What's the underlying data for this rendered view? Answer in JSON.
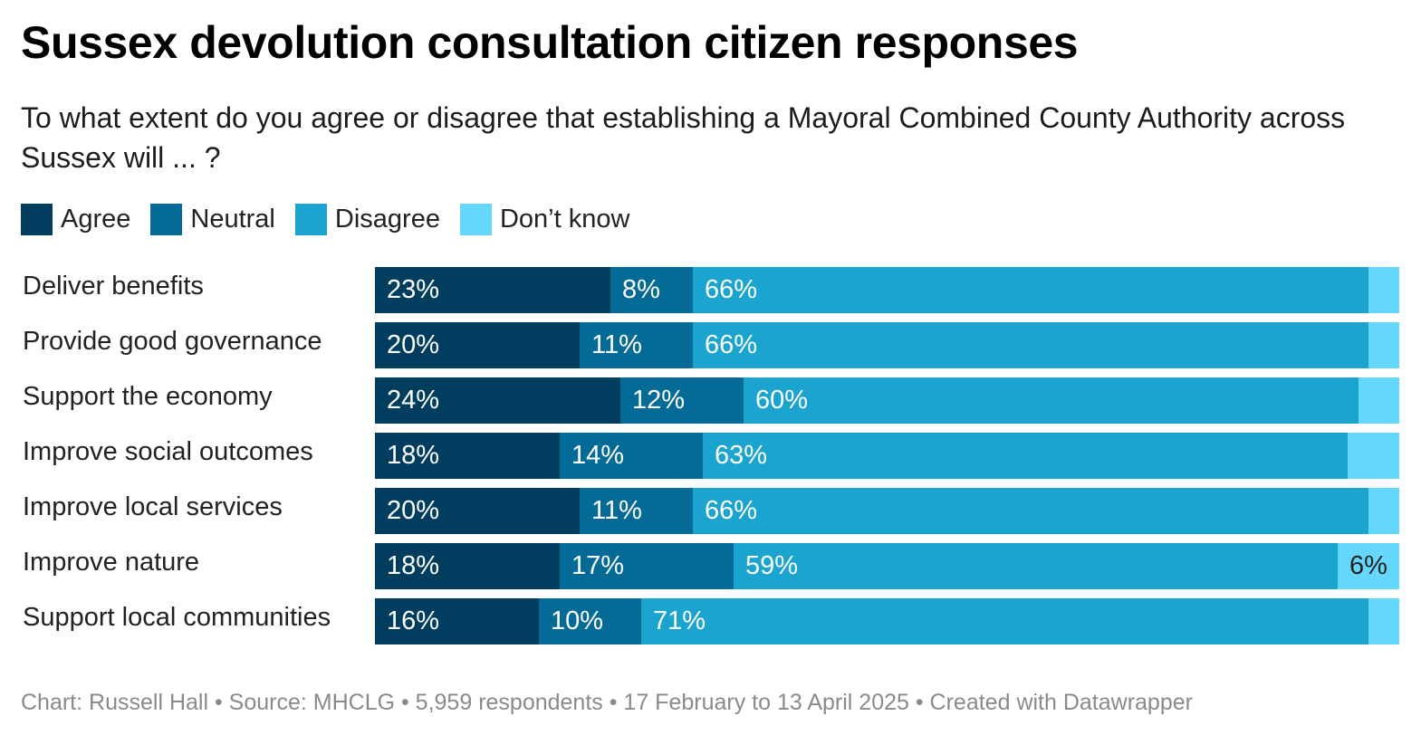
{
  "title": "Sussex devolution consultation citizen responses",
  "subtitle": "To what extent do you agree or disagree that establishing a Mayoral Combined County Authority across Sussex will ... ?",
  "footer": "Chart: Russell Hall • Source: MHCLG • 5,959 respondents • 17 February to 13 April 2025  • Created with Datawrapper",
  "chart_data": {
    "type": "bar",
    "orientation": "horizontal",
    "stacked": true,
    "title": "Sussex devolution consultation citizen responses",
    "subtitle": "To what extent do you agree or disagree that establishing a Mayoral Combined County Authority across Sussex will ... ?",
    "legend_position": "top-left",
    "xlim": [
      0,
      100
    ],
    "categories": [
      "Deliver benefits",
      "Provide good governance",
      "Support the economy",
      "Improve social outcomes",
      "Improve local services",
      "Improve nature",
      "Support local communities"
    ],
    "series": [
      {
        "name": "Agree",
        "color": "#003d5f",
        "text_color": "#ffffff",
        "values": [
          23,
          20,
          24,
          18,
          20,
          18,
          16
        ],
        "labels": [
          "23%",
          "20%",
          "24%",
          "18%",
          "20%",
          "18%",
          "16%"
        ]
      },
      {
        "name": "Neutral",
        "color": "#046b96",
        "text_color": "#ffffff",
        "values": [
          8,
          11,
          12,
          14,
          11,
          17,
          10
        ],
        "labels": [
          "8%",
          "11%",
          "12%",
          "14%",
          "11%",
          "17%",
          "10%"
        ]
      },
      {
        "name": "Disagree",
        "color": "#1ba4d0",
        "text_color": "#ffffff",
        "values": [
          66,
          66,
          60,
          63,
          66,
          59,
          71
        ],
        "labels": [
          "66%",
          "66%",
          "60%",
          "63%",
          "66%",
          "59%",
          "71%"
        ]
      },
      {
        "name": "Don’t know",
        "color": "#65d7fd",
        "text_color": "#222222",
        "values": [
          3,
          3,
          4,
          5,
          3,
          6,
          3
        ],
        "labels": [
          "",
          "",
          "",
          "",
          "",
          "6%",
          ""
        ]
      }
    ]
  }
}
